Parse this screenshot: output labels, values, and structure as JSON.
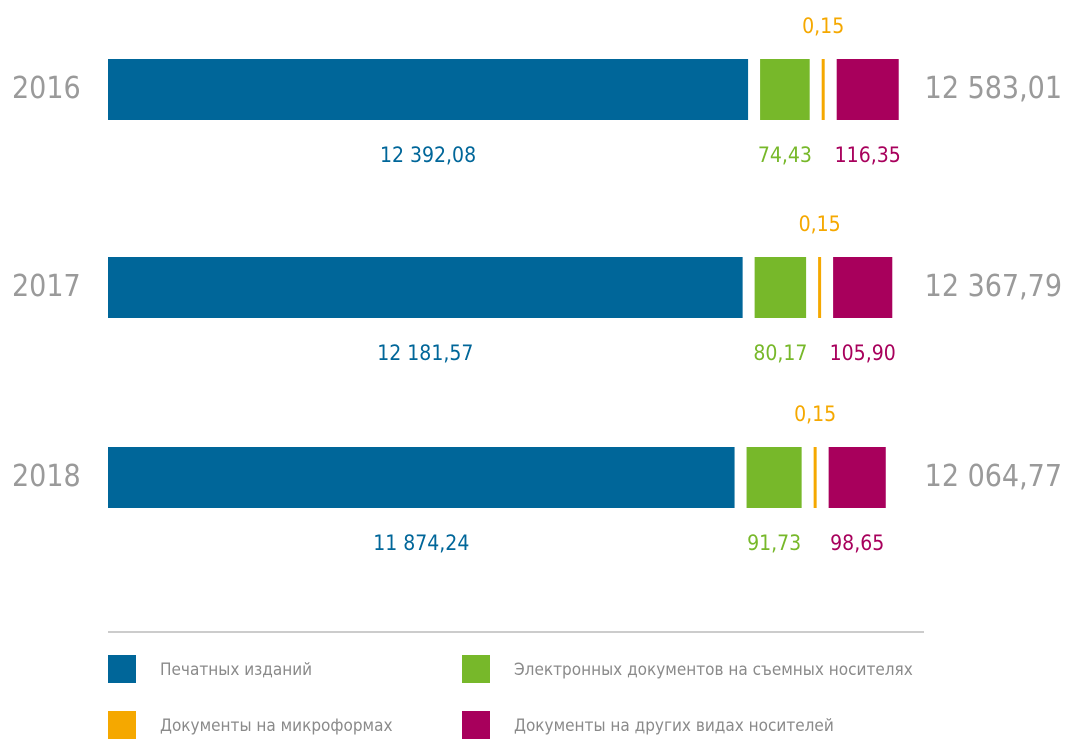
{
  "chart_data": {
    "type": "stacked-bar-horizontal",
    "categories": [
      "2016",
      "2017",
      "2018"
    ],
    "series": [
      {
        "name": "Печатных изданий",
        "color": "#006699",
        "values": [
          12392.08,
          12181.57,
          11874.24
        ],
        "value_labels": [
          "12 392,08",
          "12 181,57",
          "11 874,24"
        ]
      },
      {
        "name": "Электронных документов на съемных носителях",
        "color": "#77b82a",
        "values": [
          74.43,
          80.17,
          91.73
        ],
        "value_labels": [
          "74,43",
          "80,17",
          "91,73"
        ]
      },
      {
        "name": "Документы на микроформах",
        "color": "#f5a800",
        "values": [
          0.15,
          0.15,
          0.15
        ],
        "value_labels": [
          "0,15",
          "0,15",
          "0,15"
        ]
      },
      {
        "name": "Документы на других видах носителей",
        "color": "#a8005c",
        "values": [
          116.35,
          105.9,
          98.65
        ],
        "value_labels": [
          "116,35",
          "105,90",
          "98,65"
        ]
      }
    ],
    "totals": [
      {
        "value": 12583.01,
        "label": "12 583,01"
      },
      {
        "value": 12367.79,
        "label": "12 367,79"
      },
      {
        "value": 12064.77,
        "label": "12 064,77"
      }
    ]
  }
}
